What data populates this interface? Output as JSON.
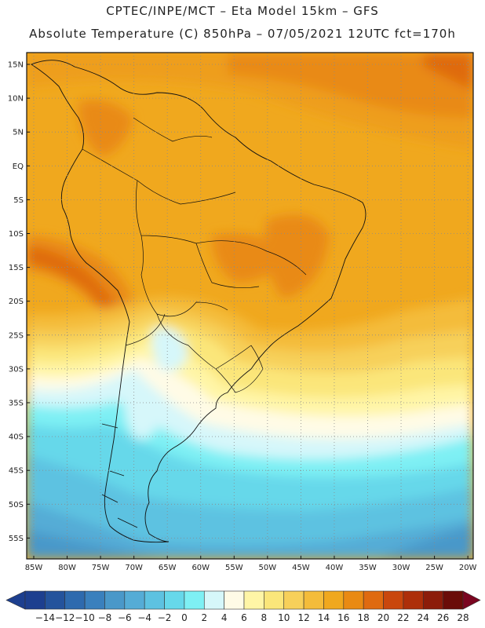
{
  "header": {
    "line1": "CPTEC/INPE/MCT –  Eta Model 15km – GFS",
    "line2": "Absolute Temperature (C) 850hPa – 07/05/2021 12UTC fct=170h"
  },
  "map": {
    "lat_labels": [
      "15N",
      "10N",
      "5N",
      "EQ",
      "5S",
      "10S",
      "15S",
      "20S",
      "25S",
      "30S",
      "35S",
      "40S",
      "45S",
      "50S",
      "55S"
    ],
    "lon_labels": [
      "85W",
      "80W",
      "75W",
      "70W",
      "65W",
      "60W",
      "55W",
      "50W",
      "45W",
      "40W",
      "35W",
      "30W",
      "25W",
      "20W"
    ],
    "grid": "dotted"
  },
  "colorbar": {
    "labels": [
      "-14",
      "-12",
      "-10",
      "-8",
      "-6",
      "-4",
      "-2",
      "0",
      "2",
      "4",
      "6",
      "8",
      "10",
      "12",
      "14",
      "16",
      "18",
      "20",
      "22",
      "24",
      "26",
      "28"
    ],
    "colors": [
      "#1d3f8f",
      "#24539c",
      "#2e6aae",
      "#3a80bd",
      "#4a98c9",
      "#55acd6",
      "#5dc2e1",
      "#66d8ea",
      "#7ef0f4",
      "#d6f7fa",
      "#fffbe6",
      "#fff5a6",
      "#fbe67a",
      "#f7d05a",
      "#f4bc3a",
      "#f0a81e",
      "#e98a13",
      "#df6a10",
      "#c9470d",
      "#ad2f0a",
      "#8c1c0a",
      "#6a0c08"
    ]
  }
}
